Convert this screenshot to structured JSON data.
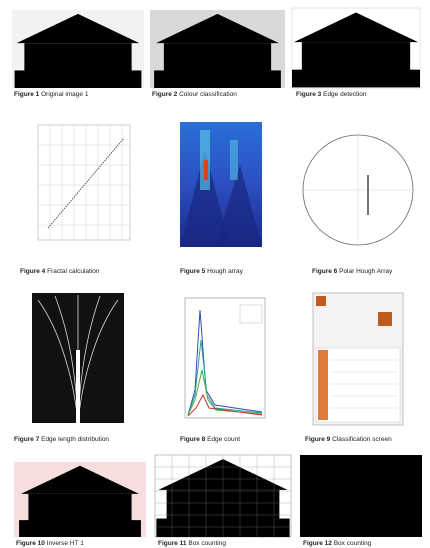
{
  "figures": [
    {
      "number": "Figure 1",
      "caption": "Original image 1"
    },
    {
      "number": "Figure 2",
      "caption": "Colour classification"
    },
    {
      "number": "Figure 3",
      "caption": "Edge detection"
    },
    {
      "number": "Figure 4",
      "caption": "Fractal calculation"
    },
    {
      "number": "Figure 5",
      "caption": "Hough array"
    },
    {
      "number": "Figure 6",
      "caption": "Polar Hough Array"
    },
    {
      "number": "Figure 7",
      "caption": "Edge length distribution"
    },
    {
      "number": "Figure 8",
      "caption": "Edge count"
    },
    {
      "number": "Figure 9",
      "caption": "Classification screen"
    },
    {
      "number": "Figure 10",
      "caption": "Inverse HT 1"
    },
    {
      "number": "Figure 11",
      "caption": "Box counting"
    },
    {
      "number": "Figure 12",
      "caption": "Box counting"
    }
  ]
}
